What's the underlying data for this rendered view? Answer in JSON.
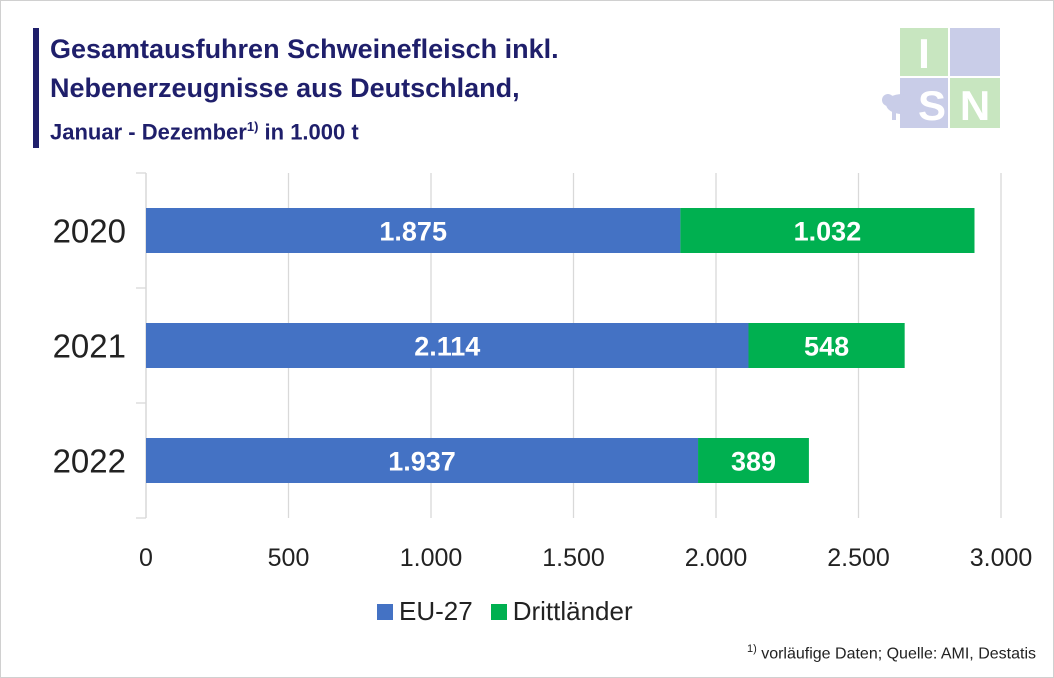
{
  "title": {
    "line1": "Gesamtausfuhren Schweinefleisch inkl.",
    "line2": "Nebenerzeugnisse aus Deutschland,",
    "line3_pre": "Januar - Dezember",
    "line3_sup": "1)",
    "line3_post": " in 1.000 t"
  },
  "logo": {
    "letters": [
      "I",
      "S",
      "N"
    ],
    "icon": "pig-icon"
  },
  "footnote": {
    "sup": "1)",
    "text": " vorläufige Daten; Quelle: AMI, Destatis"
  },
  "colors": {
    "eu": "#4472c4",
    "third": "#00b050",
    "title": "#1f1f6b",
    "grid": "#d9d9d9"
  },
  "chart_data": {
    "type": "bar",
    "orientation": "horizontal",
    "stacked": true,
    "categories": [
      "2020",
      "2021",
      "2022"
    ],
    "series": [
      {
        "name": "EU-27",
        "values": [
          1875,
          2114,
          1937
        ],
        "labels": [
          "1.875",
          "2.114",
          "1.937"
        ],
        "color": "#4472c4"
      },
      {
        "name": "Drittländer",
        "values": [
          1032,
          548,
          389
        ],
        "labels": [
          "1.032",
          "548",
          "389"
        ],
        "color": "#00b050"
      }
    ],
    "xlim": [
      0,
      3000
    ],
    "xticks": [
      0,
      500,
      1000,
      1500,
      2000,
      2500,
      3000
    ],
    "xtick_labels": [
      "0",
      "500",
      "1.000",
      "1.500",
      "2.000",
      "2.500",
      "3.000"
    ],
    "grid": true,
    "legend_position": "bottom"
  }
}
